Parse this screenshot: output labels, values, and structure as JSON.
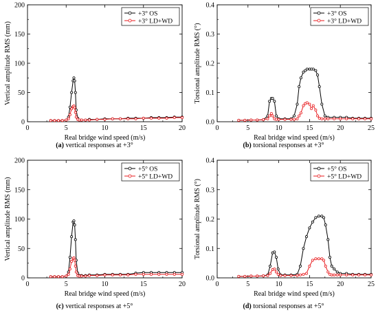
{
  "colors": {
    "os": "#000000",
    "ldwd": "#e8191c"
  },
  "chart_data": [
    {
      "type": "line",
      "id": "a",
      "caption_label": "(a)",
      "caption_text": "vertical responses at +3°",
      "xlabel": "Real bridge wind speed (m/s)",
      "ylabel": "Vertical amplitude RMS (mm)",
      "xlim": [
        0,
        20
      ],
      "ylim": [
        0,
        200
      ],
      "xticks": [
        0,
        5,
        10,
        15,
        20
      ],
      "xtick_labels": [
        "0",
        "5",
        "10",
        "15",
        "20"
      ],
      "yticks": [
        0,
        50,
        100,
        150,
        200
      ],
      "ytick_labels": [
        "0",
        "50",
        "100",
        "150",
        "200"
      ],
      "legend": "top-right",
      "series": [
        {
          "name": "+3° OS",
          "color": "#000000",
          "x": [
            3.0,
            3.5,
            4.0,
            4.5,
            5.0,
            5.3,
            5.5,
            5.7,
            5.9,
            6.0,
            6.1,
            6.2,
            6.3,
            6.5,
            6.7,
            7.0,
            7.5,
            8,
            9,
            10,
            11,
            12,
            13,
            14,
            15,
            16,
            17,
            18,
            19,
            20
          ],
          "y": [
            2,
            2,
            2,
            2,
            3,
            8,
            25,
            50,
            70,
            75,
            70,
            50,
            20,
            6,
            3,
            3,
            3,
            4,
            4,
            5,
            5,
            5,
            6,
            6,
            6,
            7,
            7,
            7,
            8,
            8
          ]
        },
        {
          "name": "+3° LD+WD",
          "color": "#e8191c",
          "x": [
            3.0,
            3.5,
            4.0,
            4.5,
            5.0,
            5.3,
            5.5,
            5.7,
            5.9,
            6.0,
            6.1,
            6.2,
            6.3,
            6.5,
            6.7,
            7.0,
            7.5,
            8,
            9,
            10,
            11,
            12,
            13,
            14,
            15,
            16,
            17,
            18,
            19,
            20
          ],
          "y": [
            2,
            2,
            2,
            2,
            3,
            5,
            12,
            22,
            26,
            27,
            24,
            16,
            8,
            4,
            3,
            3,
            3,
            3,
            4,
            4,
            5,
            5,
            5,
            5,
            6,
            6,
            6,
            6,
            7,
            7
          ]
        }
      ]
    },
    {
      "type": "line",
      "id": "b",
      "caption_label": "(b)",
      "caption_text": "torsional responses at +3°",
      "xlabel": "Real bridge wind speed (m/s)",
      "ylabel": "Torsional amplitude RMS (°)",
      "xlim": [
        0,
        25
      ],
      "ylim": [
        0,
        0.4
      ],
      "xticks": [
        0,
        5,
        10,
        15,
        20,
        25
      ],
      "xtick_labels": [
        "0",
        "5",
        "10",
        "15",
        "20",
        "25"
      ],
      "yticks": [
        0,
        0.1,
        0.2,
        0.3,
        0.4
      ],
      "ytick_labels": [
        "0.0",
        "0.1",
        "0.2",
        "0.3",
        "0.4"
      ],
      "legend": "top-right",
      "series": [
        {
          "name": "+3° OS",
          "color": "#000000",
          "x": [
            3.5,
            4.5,
            5.5,
            6.5,
            7.5,
            8.2,
            8.5,
            8.8,
            9.0,
            9.3,
            9.6,
            10,
            11,
            12,
            12.5,
            13,
            13.3,
            13.6,
            14,
            14.3,
            14.6,
            15,
            15.3,
            15.6,
            16,
            16.3,
            16.6,
            17,
            17.5,
            18,
            19,
            20,
            21,
            22,
            23,
            24,
            25
          ],
          "y": [
            0.005,
            0.005,
            0.006,
            0.006,
            0.007,
            0.02,
            0.07,
            0.08,
            0.08,
            0.07,
            0.02,
            0.01,
            0.01,
            0.01,
            0.02,
            0.06,
            0.12,
            0.15,
            0.17,
            0.175,
            0.18,
            0.18,
            0.18,
            0.18,
            0.175,
            0.16,
            0.12,
            0.06,
            0.02,
            0.015,
            0.015,
            0.015,
            0.015,
            0.012,
            0.012,
            0.012,
            0.012
          ]
        },
        {
          "name": "+3° LD+WD",
          "color": "#e8191c",
          "x": [
            3.5,
            4.5,
            5.5,
            6.5,
            7.5,
            8.2,
            8.5,
            8.8,
            9.0,
            9.3,
            9.6,
            10,
            11,
            12,
            12.5,
            13,
            13.3,
            13.6,
            14,
            14.3,
            14.6,
            15,
            15.3,
            15.6,
            16,
            16.3,
            16.6,
            17,
            17.5,
            18,
            19,
            20,
            21,
            22,
            23,
            24,
            25
          ],
          "y": [
            0.005,
            0.005,
            0.006,
            0.006,
            0.007,
            0.01,
            0.02,
            0.028,
            0.02,
            0.01,
            0.008,
            0.008,
            0.008,
            0.008,
            0.008,
            0.01,
            0.02,
            0.03,
            0.055,
            0.062,
            0.065,
            0.06,
            0.045,
            0.055,
            0.04,
            0.02,
            0.012,
            0.01,
            0.01,
            0.01,
            0.01,
            0.01,
            0.01,
            0.01,
            0.01,
            0.01,
            0.01
          ]
        }
      ]
    },
    {
      "type": "line",
      "id": "c",
      "caption_label": "(c)",
      "caption_text": "vertical responses at +5°",
      "xlabel": "Real bridge wind speed (m/s)",
      "ylabel": "Vertical amplitude RMS (mm)",
      "xlim": [
        0,
        20
      ],
      "ylim": [
        0,
        200
      ],
      "xticks": [
        0,
        5,
        10,
        15,
        20
      ],
      "xtick_labels": [
        "0",
        "5",
        "10",
        "15",
        "20"
      ],
      "yticks": [
        0,
        50,
        100,
        150,
        200
      ],
      "ytick_labels": [
        "0",
        "50",
        "100",
        "150",
        "200"
      ],
      "legend": "top-right",
      "series": [
        {
          "name": "+5° OS",
          "color": "#000000",
          "x": [
            3.0,
            3.5,
            4.0,
            4.5,
            5.0,
            5.3,
            5.5,
            5.7,
            5.9,
            6.0,
            6.1,
            6.2,
            6.3,
            6.5,
            6.7,
            7.0,
            7.5,
            8,
            9,
            10,
            11,
            12,
            13,
            14,
            15,
            16,
            17,
            18,
            19,
            20
          ],
          "y": [
            2,
            2,
            2,
            2,
            3,
            10,
            35,
            70,
            95,
            97,
            90,
            65,
            30,
            8,
            4,
            4,
            4,
            5,
            5,
            6,
            6,
            6,
            6,
            8,
            9,
            9,
            9,
            9,
            9,
            9
          ]
        },
        {
          "name": "+5° LD+WD",
          "color": "#e8191c",
          "x": [
            3.0,
            3.5,
            4.0,
            4.5,
            5.0,
            5.3,
            5.5,
            5.7,
            5.9,
            6.0,
            6.1,
            6.2,
            6.3,
            6.5,
            6.7,
            7.0,
            7.5,
            8,
            9,
            10,
            11,
            12,
            13,
            14,
            15,
            16,
            17,
            18,
            19,
            20
          ],
          "y": [
            2,
            2,
            2,
            2,
            3,
            6,
            15,
            28,
            33,
            34,
            30,
            20,
            10,
            4,
            3,
            3,
            3,
            4,
            4,
            5,
            5,
            5,
            5,
            6,
            6,
            6,
            6,
            6,
            6,
            6
          ]
        }
      ]
    },
    {
      "type": "line",
      "id": "d",
      "caption_label": "(d)",
      "caption_text": "torsional responses at +5°",
      "xlabel": "Real bridge wind speed (m/s)",
      "ylabel": "Torsional amplitude RMS (°)",
      "xlim": [
        0,
        25
      ],
      "ylim": [
        0,
        0.4
      ],
      "xticks": [
        0,
        5,
        10,
        15,
        20,
        25
      ],
      "xtick_labels": [
        "0",
        "5",
        "10",
        "15",
        "20",
        "25"
      ],
      "yticks": [
        0,
        0.1,
        0.2,
        0.3,
        0.4
      ],
      "ytick_labels": [
        "0.0",
        "0.1",
        "0.2",
        "0.3",
        "0.4"
      ],
      "legend": "top-right",
      "series": [
        {
          "name": "+5° OS",
          "color": "#000000",
          "x": [
            3.5,
            4.5,
            5.5,
            6.5,
            7.5,
            8.2,
            8.6,
            9.0,
            9.3,
            9.6,
            9.9,
            10.3,
            11,
            12,
            13,
            13.5,
            14,
            14.5,
            15,
            15.5,
            16,
            16.5,
            17,
            17.3,
            17.6,
            18,
            18.3,
            18.6,
            19,
            19.5,
            20,
            21,
            22,
            23,
            24,
            25
          ],
          "y": [
            0.005,
            0.005,
            0.006,
            0.006,
            0.007,
            0.01,
            0.04,
            0.085,
            0.088,
            0.07,
            0.03,
            0.01,
            0.01,
            0.01,
            0.012,
            0.04,
            0.1,
            0.14,
            0.17,
            0.19,
            0.205,
            0.21,
            0.21,
            0.205,
            0.18,
            0.13,
            0.07,
            0.04,
            0.03,
            0.02,
            0.015,
            0.015,
            0.012,
            0.012,
            0.012,
            0.012
          ]
        },
        {
          "name": "+5° LD+WD",
          "color": "#e8191c",
          "x": [
            3.5,
            4.5,
            5.5,
            6.5,
            7.5,
            8.2,
            8.6,
            9.0,
            9.3,
            9.6,
            9.9,
            10.3,
            11,
            12,
            13,
            13.5,
            14,
            14.5,
            15,
            15.5,
            16,
            16.5,
            17,
            17.3,
            17.6,
            18,
            18.3,
            18.6,
            19,
            19.5,
            20,
            21,
            22,
            23,
            24,
            25
          ],
          "y": [
            0.005,
            0.005,
            0.006,
            0.006,
            0.007,
            0.008,
            0.015,
            0.028,
            0.03,
            0.02,
            0.012,
            0.008,
            0.008,
            0.008,
            0.008,
            0.01,
            0.012,
            0.015,
            0.04,
            0.06,
            0.065,
            0.065,
            0.065,
            0.06,
            0.04,
            0.02,
            0.012,
            0.01,
            0.01,
            0.01,
            0.01,
            0.01,
            0.01,
            0.01,
            0.01,
            0.01
          ]
        }
      ]
    }
  ]
}
